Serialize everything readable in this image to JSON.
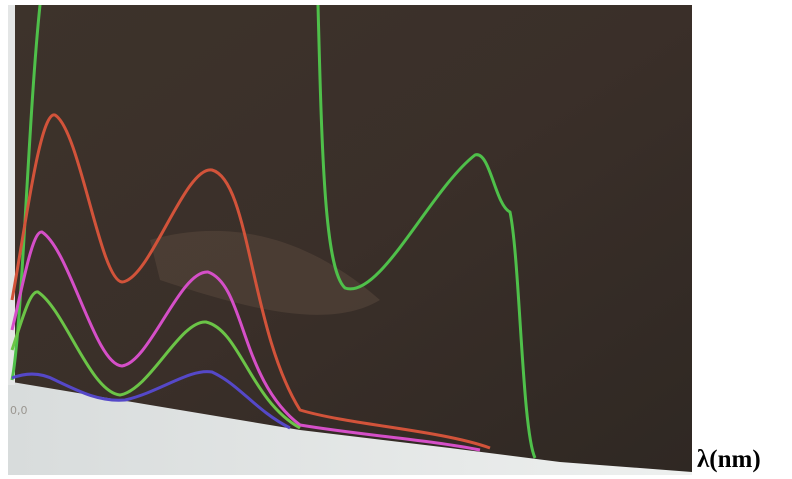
{
  "screen": {
    "tick_label": "0,0"
  },
  "axis_caption": "λ(nm)"
}
